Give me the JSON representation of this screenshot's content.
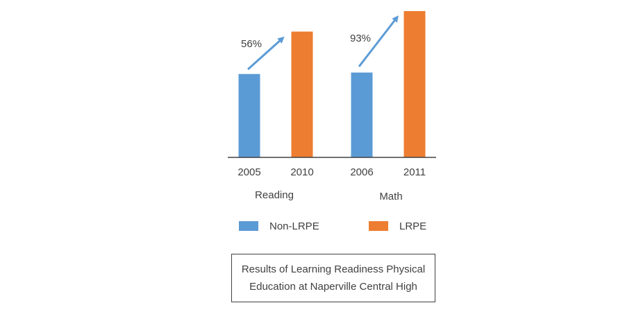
{
  "chart_data": {
    "type": "bar",
    "categories": [
      "2005",
      "2010",
      "2006",
      "2011"
    ],
    "groups": [
      "Reading",
      "Math"
    ],
    "series": [
      {
        "name": "Non-LRPE",
        "values": [
          57,
          null,
          58,
          null
        ]
      },
      {
        "name": "LRPE",
        "values": [
          null,
          86,
          null,
          100
        ]
      }
    ],
    "bar_colors": [
      "#5B9BD5",
      "#ED7D31",
      "#5B9BD5",
      "#ED7D31"
    ],
    "ylim": [
      0,
      100
    ],
    "annotations": [
      {
        "text": "56%",
        "group": "Reading"
      },
      {
        "text": "93%",
        "group": "Math"
      }
    ],
    "legend": [
      {
        "label": "Non-LRPE",
        "color": "#5B9BD5"
      },
      {
        "label": "LRPE",
        "color": "#ED7D31"
      }
    ],
    "arrow_color": "#5B9BD5",
    "grid": false,
    "legend_position": "bottom"
  },
  "caption": {
    "line1": "Results of Learning Readiness Physical",
    "line2": "Education at Naperville Central High"
  }
}
